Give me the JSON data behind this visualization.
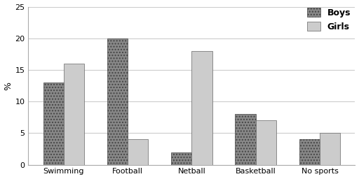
{
  "categories": [
    "Swimming",
    "Football",
    "Netball",
    "Basketball",
    "No sports"
  ],
  "boys": [
    13,
    20,
    2,
    8,
    4
  ],
  "girls": [
    16,
    4,
    18,
    7,
    5
  ],
  "ylabel": "%",
  "ylim": [
    0,
    25
  ],
  "yticks": [
    0,
    5,
    10,
    15,
    20,
    25
  ],
  "boys_facecolor": "#888888",
  "boys_hatch": "....",
  "girls_facecolor": "#cccccc",
  "girls_hatch": "====",
  "background_color": "#ffffff",
  "bar_width": 0.32,
  "axis_fontsize": 9,
  "tick_fontsize": 8,
  "legend_fontsize": 9,
  "grid_color": "#cccccc"
}
